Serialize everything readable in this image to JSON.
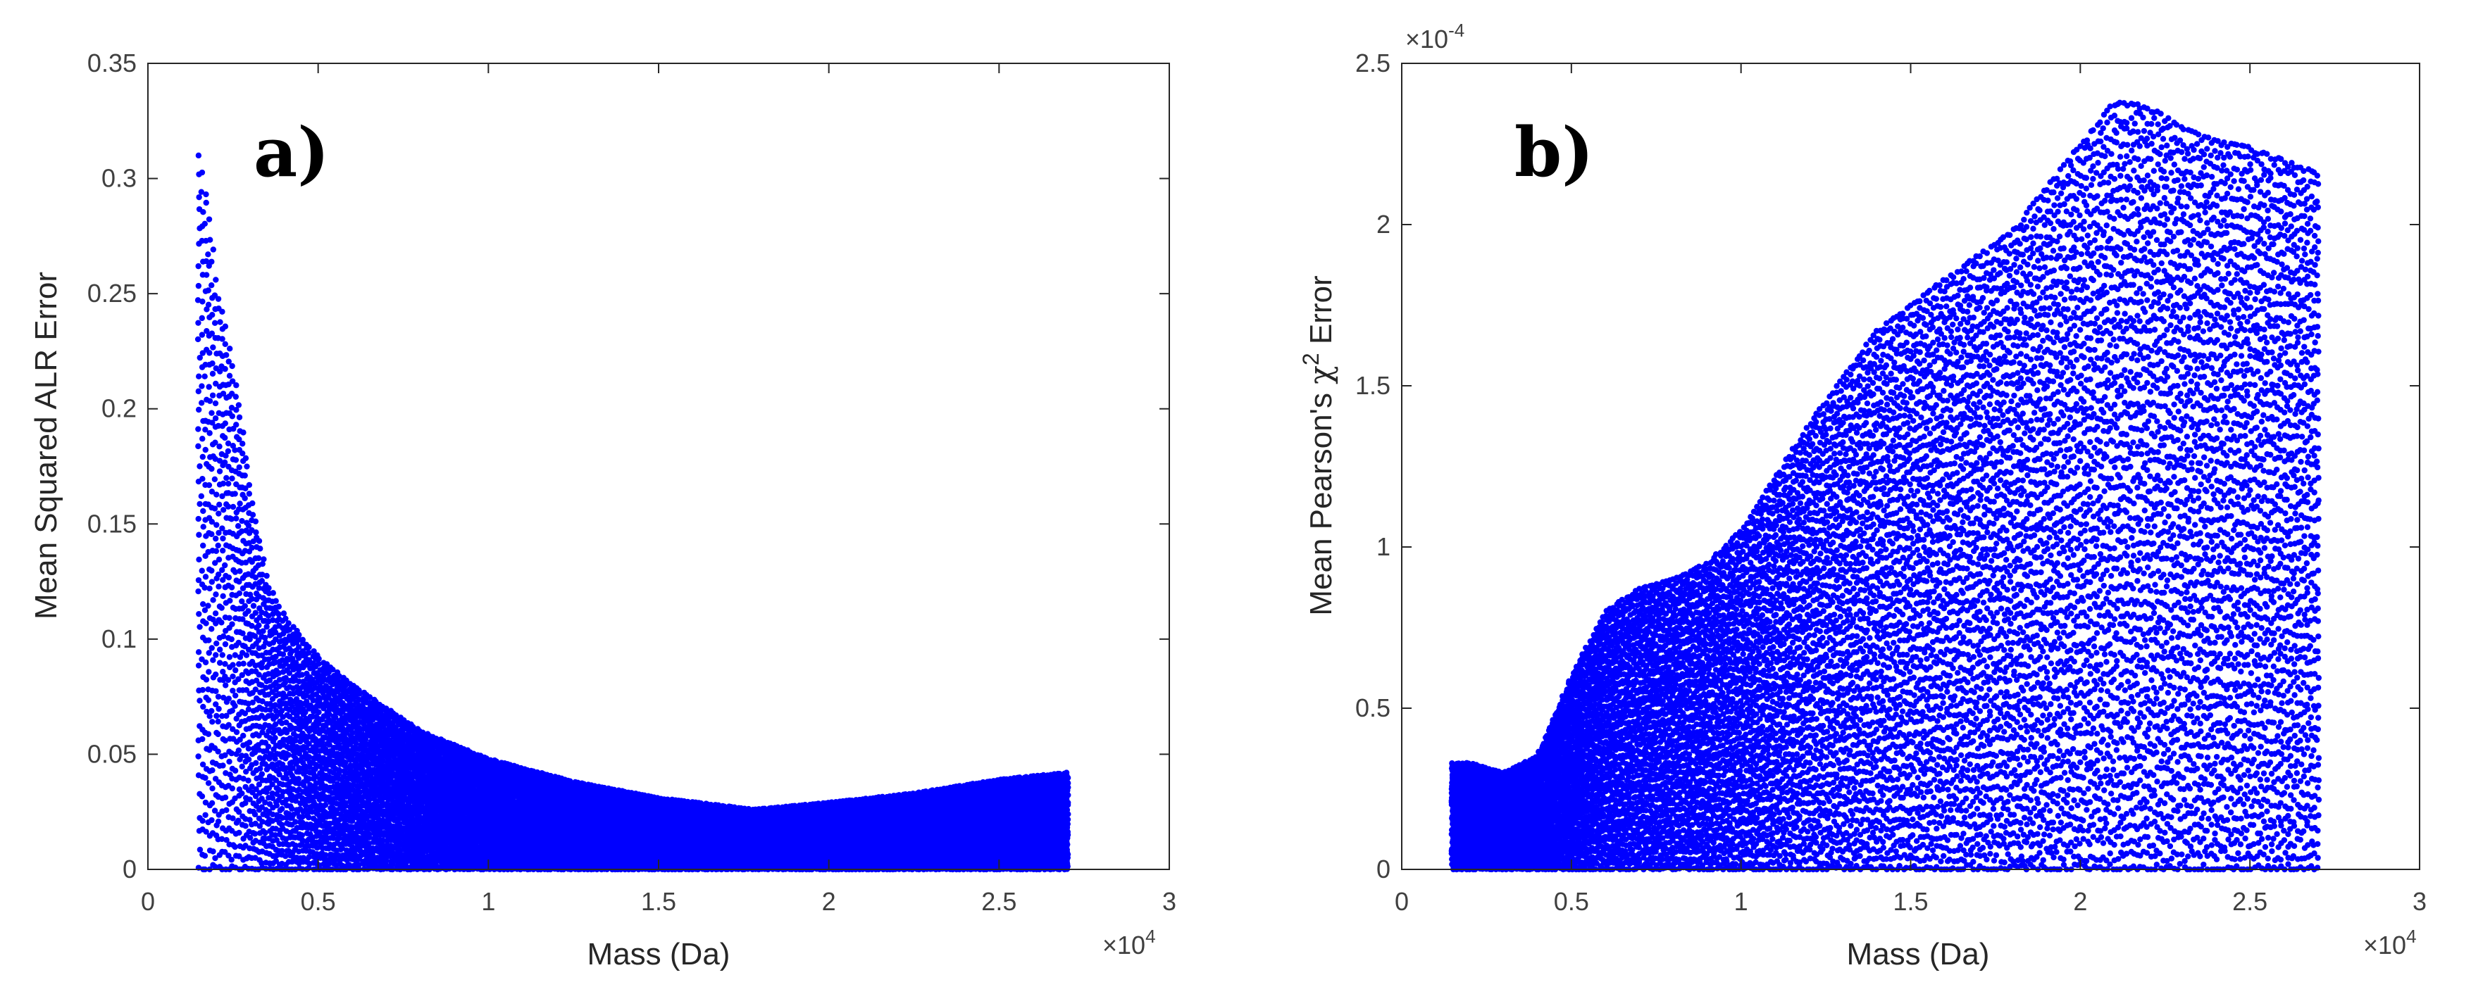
{
  "chart_data": [
    {
      "type": "scatter",
      "panel_label": "a)",
      "xlabel": "Mass (Da)",
      "ylabel": "Mean Squared ALR Error",
      "x_exponent_label": "×10",
      "x_exponent_power": "4",
      "xlim": [
        0,
        3
      ],
      "ylim": [
        0,
        0.35
      ],
      "x_ticks": [
        "0",
        "0.5",
        "1",
        "1.5",
        "2",
        "2.5",
        "3"
      ],
      "y_ticks": [
        "0",
        "0.05",
        "0.1",
        "0.15",
        "0.2",
        "0.25",
        "0.3",
        "0.35"
      ],
      "marker_color": "#0000ff",
      "grid": false,
      "series": [
        {
          "envelope": {
            "x": [
              0.15,
              0.17,
              0.2,
              0.23,
              0.27,
              0.3,
              0.35,
              0.4,
              0.5,
              0.6,
              0.8,
              1.0,
              1.25,
              1.5,
              1.78,
              2.0,
              2.25,
              2.5,
              2.7
            ],
            "y_max": [
              0.31,
              0.295,
              0.255,
              0.235,
              0.2,
              0.165,
              0.125,
              0.11,
              0.092,
              0.08,
              0.06,
              0.048,
              0.038,
              0.031,
              0.026,
              0.029,
              0.033,
              0.039,
              0.042
            ],
            "y_min": [
              0.0,
              0.0,
              0.0,
              0.0,
              0.0,
              0.0,
              0.0,
              0.0,
              0.0,
              0.0,
              0.0,
              0.0,
              0.0,
              0.0,
              0.0,
              0.0,
              0.0,
              0.0,
              0.0
            ]
          },
          "x_start": 0.15,
          "x_end": 2.7
        }
      ]
    },
    {
      "type": "scatter",
      "panel_label": "b)",
      "xlabel": "Mass (Da)",
      "ylabel_prefix": "Mean Pearson's ",
      "ylabel_symbol": "χ",
      "ylabel_power": "2",
      "ylabel_suffix": " Error",
      "x_exponent_label": "×10",
      "x_exponent_power": "4",
      "y_exponent_label": "×10",
      "y_exponent_power": "-4",
      "xlim": [
        0,
        3
      ],
      "ylim": [
        0,
        2.5
      ],
      "x_ticks": [
        "0",
        "0.5",
        "1",
        "1.5",
        "2",
        "2.5",
        "3"
      ],
      "y_ticks": [
        "0",
        "0.5",
        "1",
        "1.5",
        "2",
        "2.5"
      ],
      "marker_color": "#0000ff",
      "grid": false,
      "series": [
        {
          "envelope": {
            "x": [
              0.15,
              0.2,
              0.3,
              0.4,
              0.5,
              0.6,
              0.7,
              0.8,
              0.9,
              1.0,
              1.2,
              1.4,
              1.6,
              1.8,
              2.0,
              2.1,
              2.2,
              2.3,
              2.4,
              2.5,
              2.55,
              2.7
            ],
            "y_max": [
              0.33,
              0.33,
              0.3,
              0.35,
              0.6,
              0.8,
              0.87,
              0.9,
              0.95,
              1.05,
              1.38,
              1.67,
              1.83,
              1.98,
              2.25,
              2.38,
              2.37,
              2.3,
              2.26,
              2.24,
              2.22,
              2.16
            ],
            "y_min": [
              0.0,
              0.0,
              0.0,
              0.0,
              0.0,
              0.0,
              0.0,
              0.0,
              0.0,
              0.0,
              0.0,
              0.0,
              0.0,
              0.0,
              0.0,
              0.0,
              0.0,
              0.0,
              0.0,
              0.0,
              0.0,
              0.0
            ]
          },
          "x_start": 0.15,
          "x_end": 2.7
        }
      ]
    }
  ]
}
